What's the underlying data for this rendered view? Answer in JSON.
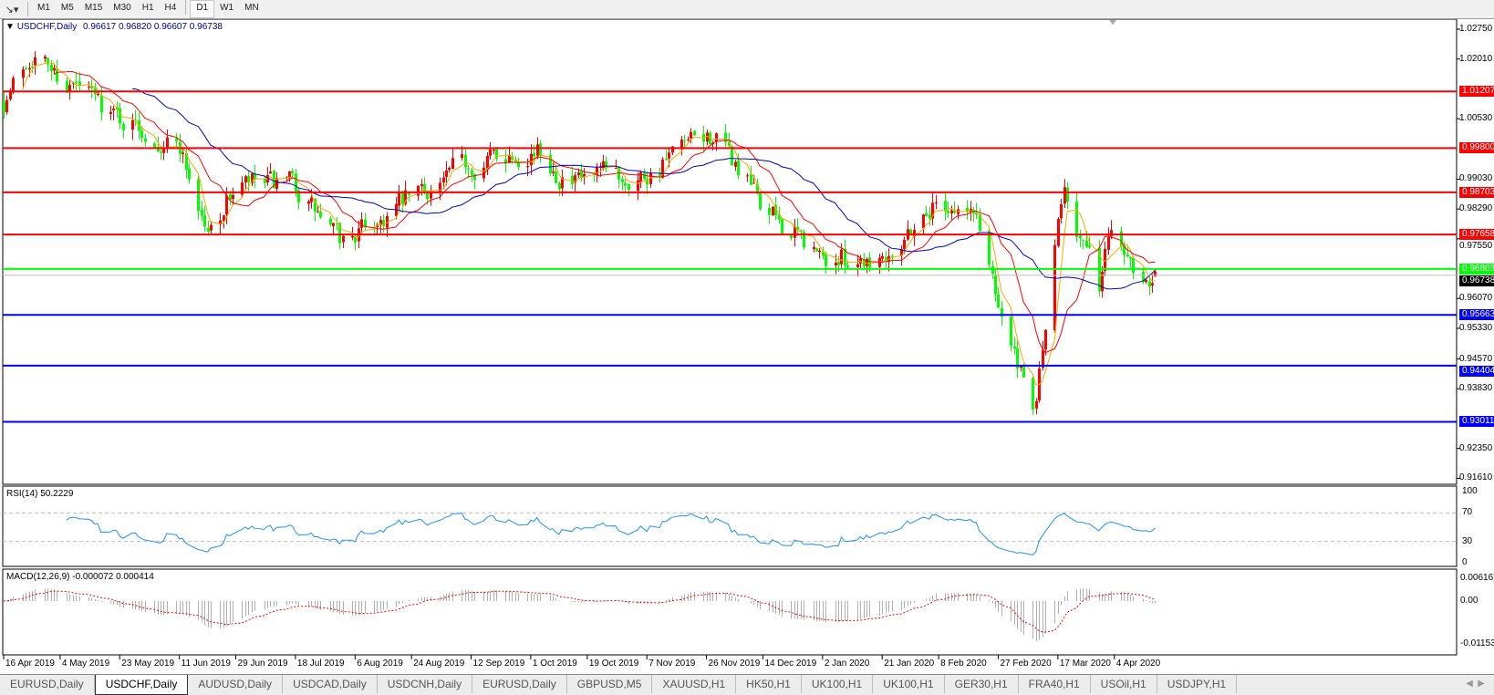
{
  "toolbar": {
    "tool_icon": "line-tools-icon",
    "timeframes": [
      "M1",
      "M5",
      "M15",
      "M30",
      "H1",
      "H4",
      "D1",
      "W1",
      "MN"
    ],
    "active_timeframe": "D1"
  },
  "chart": {
    "symbol_label": "USDCHF,Daily",
    "ohlc_label": "0.96617 0.96820 0.96607 0.96738",
    "colors": {
      "bull": "#ff0000",
      "bear": "#00ff00",
      "ma_fast": "#ffa500",
      "ma_mid": "#ff0000",
      "ma_slow": "#0000cc",
      "bid_line": "#c0c0c0"
    },
    "price_axis": [
      "1.02750",
      "1.02010",
      "1.00530",
      "0.99030",
      "0.98290",
      "0.97550",
      "0.96070",
      "0.95330",
      "0.94570",
      "0.93830",
      "0.92350",
      "0.91610"
    ],
    "current_price": "0.96738",
    "levels": [
      {
        "value": "1.01207",
        "color": "#ff0000"
      },
      {
        "value": "0.99800",
        "color": "#ff0000"
      },
      {
        "value": "0.98703",
        "color": "#ff0000"
      },
      {
        "value": "0.97658",
        "color": "#ff0000"
      },
      {
        "value": "0.96803",
        "color": "#00ff00"
      },
      {
        "value": "0.95663",
        "color": "#0000ff"
      },
      {
        "value": "0.94404",
        "color": "#0000ff"
      },
      {
        "value": "0.93011",
        "color": "#0000ff"
      }
    ],
    "date_axis": [
      {
        "label": "16 Apr 2019",
        "date": "2019-04-16"
      },
      {
        "label": "4 May 2019",
        "date": "2019-05-04"
      },
      {
        "label": "23 May 2019",
        "date": "2019-05-23"
      },
      {
        "label": "11 Jun 2019",
        "date": "2019-06-11"
      },
      {
        "label": "29 Jun 2019",
        "date": "2019-06-29"
      },
      {
        "label": "18 Jul 2019",
        "date": "2019-07-18"
      },
      {
        "label": "6 Aug 2019",
        "date": "2019-08-06"
      },
      {
        "label": "24 Aug 2019",
        "date": "2019-08-24"
      },
      {
        "label": "12 Sep 2019",
        "date": "2019-09-12"
      },
      {
        "label": "1 Oct 2019",
        "date": "2019-10-01"
      },
      {
        "label": "19 Oct 2019",
        "date": "2019-10-19"
      },
      {
        "label": "7 Nov 2019",
        "date": "2019-11-07"
      },
      {
        "label": "26 Nov 2019",
        "date": "2019-11-26"
      },
      {
        "label": "14 Dec 2019",
        "date": "2019-12-14"
      },
      {
        "label": "2 Jan 2020",
        "date": "2020-01-02"
      },
      {
        "label": "21 Jan 2020",
        "date": "2020-01-21"
      },
      {
        "label": "8 Feb 2020",
        "date": "2020-02-08"
      },
      {
        "label": "27 Feb 2020",
        "date": "2020-02-27"
      },
      {
        "label": "17 Mar 2020",
        "date": "2020-03-17"
      },
      {
        "label": "4 Apr 2020",
        "date": "2020-04-04"
      }
    ]
  },
  "rsi": {
    "label": "RSI(14) 50.2229",
    "axis": [
      "100",
      "70",
      "30",
      "0"
    ],
    "levels": [
      70,
      30
    ]
  },
  "macd": {
    "label": "MACD(12,26,9) -0.000072 0.000414",
    "axis": [
      "0.006167",
      "0.00",
      "-0.011531"
    ]
  },
  "chart_data": {
    "type": "candlestick",
    "symbol": "USDCHF",
    "timeframe": "Daily",
    "ylim": [
      0.9161,
      1.0275
    ],
    "approx_closes": [
      [
        "2019-04-16",
        1.0099
      ],
      [
        "2019-04-25",
        1.0222
      ],
      [
        "2019-05-04",
        1.0155
      ],
      [
        "2019-05-23",
        1.0055
      ],
      [
        "2019-06-11",
        0.9988
      ],
      [
        "2019-06-20",
        0.9766
      ],
      [
        "2019-06-29",
        0.9888
      ],
      [
        "2019-07-18",
        0.9877
      ],
      [
        "2019-08-01",
        0.9743
      ],
      [
        "2019-08-24",
        0.9855
      ],
      [
        "2019-09-12",
        0.9944
      ],
      [
        "2019-10-01",
        0.9988
      ],
      [
        "2019-10-15",
        0.9888
      ],
      [
        "2019-11-07",
        0.9921
      ],
      [
        "2019-11-28",
        1.001
      ],
      [
        "2019-12-14",
        0.9832
      ],
      [
        "2020-01-02",
        0.9699
      ],
      [
        "2020-01-21",
        0.9721
      ],
      [
        "2020-02-08",
        0.9855
      ],
      [
        "2020-02-20",
        0.981
      ],
      [
        "2020-02-27",
        0.961
      ],
      [
        "2020-03-09",
        0.9299
      ],
      [
        "2020-03-12",
        0.9477
      ],
      [
        "2020-03-19",
        0.9899
      ],
      [
        "2020-03-25",
        0.9743
      ],
      [
        "2020-03-30",
        0.9632
      ],
      [
        "2020-04-03",
        0.9799
      ],
      [
        "2020-04-10",
        0.9699
      ],
      [
        "2020-04-17",
        0.96738
      ]
    ],
    "last_bar": {
      "open": 0.96617,
      "high": 0.9682,
      "low": 0.96607,
      "close": 0.96738
    }
  },
  "tabs": [
    "EURUSD,Daily",
    "USDCHF,Daily",
    "AUDUSD,Daily",
    "USDCAD,Daily",
    "USDCNH,Daily",
    "EURUSD,Daily",
    "GBPUSD,M5",
    "XAUUSD,H1",
    "HK50,H1",
    "UK100,H1",
    "UK100,H1",
    "GER30,H1",
    "FRA40,H1",
    "USOil,H1",
    "USDJPY,H1"
  ],
  "active_tab": 1
}
